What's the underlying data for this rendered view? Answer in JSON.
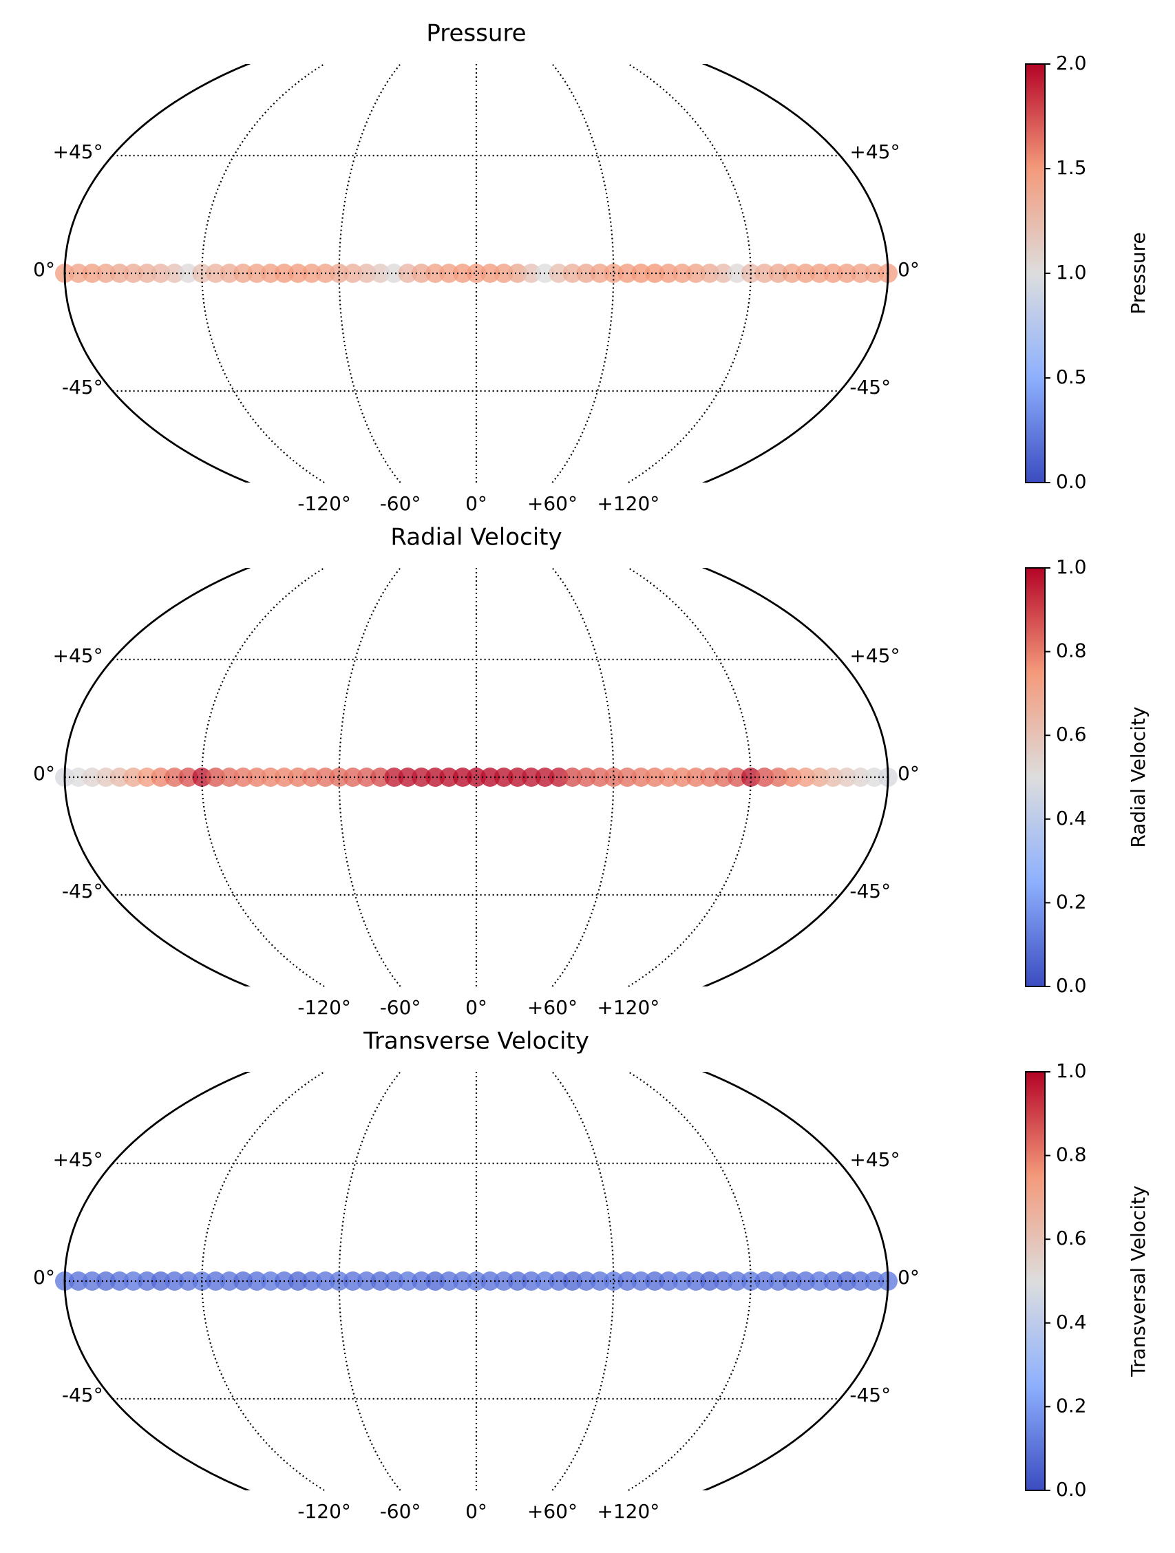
{
  "chart_data": [
    {
      "type": "scatter",
      "title": "Pressure",
      "colormap": "coolwarm",
      "colorbar_label": "Pressure",
      "clim": [
        0,
        2
      ],
      "cticks": [
        {
          "value": 0,
          "label": "0.0"
        },
        {
          "value": 0.5,
          "label": "0.5"
        },
        {
          "value": 1,
          "label": "1.0"
        },
        {
          "value": 1.5,
          "label": "1.5"
        },
        {
          "value": 2,
          "label": "2.0"
        }
      ],
      "xlim": [
        -180,
        180
      ],
      "ylim": [
        -80,
        80
      ],
      "xticks": [
        {
          "value": -120,
          "label": "-120°"
        },
        {
          "value": -60,
          "label": "-60°"
        },
        {
          "value": 0,
          "label": "0°"
        },
        {
          "value": 60,
          "label": "+60°"
        },
        {
          "value": 120,
          "label": "+120°"
        }
      ],
      "yticks": [
        {
          "value": -45,
          "label": "-45°"
        },
        {
          "value": 0,
          "label": "0°"
        },
        {
          "value": 45,
          "label": "+45°"
        }
      ],
      "grid": true,
      "x": [
        -180,
        -174,
        -168,
        -162,
        -156,
        -150,
        -144,
        -138,
        -132,
        -126,
        -120,
        -114,
        -108,
        -102,
        -96,
        -90,
        -84,
        -78,
        -72,
        -66,
        -60,
        -54,
        -48,
        -42,
        -36,
        -30,
        -24,
        -18,
        -12,
        -6,
        0,
        6,
        12,
        18,
        24,
        30,
        36,
        42,
        48,
        54,
        60,
        66,
        72,
        78,
        84,
        90,
        96,
        102,
        108,
        114,
        120,
        126,
        132,
        138,
        144,
        150,
        156,
        162,
        168,
        174,
        180
      ],
      "y": [
        0,
        0,
        0,
        0,
        0,
        0,
        0,
        0,
        0,
        0,
        0,
        0,
        0,
        0,
        0,
        0,
        0,
        0,
        0,
        0,
        0,
        0,
        0,
        0,
        0,
        0,
        0,
        0,
        0,
        0,
        0,
        0,
        0,
        0,
        0,
        0,
        0,
        0,
        0,
        0,
        0,
        0,
        0,
        0,
        0,
        0,
        0,
        0,
        0,
        0,
        0,
        0,
        0,
        0,
        0,
        0,
        0,
        0,
        0,
        0,
        0
      ],
      "values": [
        1.45,
        1.42,
        1.44,
        1.4,
        1.38,
        1.35,
        1.32,
        1.28,
        1.2,
        1.02,
        1.22,
        1.3,
        1.35,
        1.4,
        1.42,
        1.45,
        1.47,
        1.48,
        1.45,
        1.42,
        1.38,
        1.32,
        1.25,
        1.15,
        1.02,
        1.28,
        1.38,
        1.42,
        1.45,
        1.47,
        1.48,
        1.47,
        1.45,
        1.38,
        1.2,
        1.0,
        1.22,
        1.32,
        1.38,
        1.42,
        1.45,
        1.48,
        1.5,
        1.5,
        1.48,
        1.45,
        1.42,
        1.35,
        1.25,
        1.02,
        1.25,
        1.33,
        1.38,
        1.42,
        1.44,
        1.45,
        1.46,
        1.45,
        1.43,
        1.42,
        1.45
      ]
    },
    {
      "type": "scatter",
      "title": "Radial Velocity",
      "colormap": "coolwarm",
      "colorbar_label": "Radial Velocity",
      "clim": [
        0,
        1
      ],
      "cticks": [
        {
          "value": 0,
          "label": "0.0"
        },
        0.2,
        0.4,
        0.6,
        0.8,
        {
          "value": 1,
          "label": "1.0"
        }
      ],
      "xlim": [
        -180,
        180
      ],
      "ylim": [
        -80,
        80
      ],
      "xticks": [
        {
          "value": -120,
          "label": "-120°"
        },
        {
          "value": -60,
          "label": "-60°"
        },
        {
          "value": 0,
          "label": "0°"
        },
        {
          "value": 60,
          "label": "+60°"
        },
        {
          "value": 120,
          "label": "+120°"
        }
      ],
      "yticks": [
        {
          "value": -45,
          "label": "-45°"
        },
        {
          "value": 0,
          "label": "0°"
        },
        {
          "value": 45,
          "label": "+45°"
        }
      ],
      "grid": true,
      "x": [
        -180,
        -174,
        -168,
        -162,
        -156,
        -150,
        -144,
        -138,
        -132,
        -126,
        -120,
        -114,
        -108,
        -102,
        -96,
        -90,
        -84,
        -78,
        -72,
        -66,
        -60,
        -54,
        -48,
        -42,
        -36,
        -30,
        -24,
        -18,
        -12,
        -6,
        0,
        6,
        12,
        18,
        24,
        30,
        36,
        42,
        48,
        54,
        60,
        66,
        72,
        78,
        84,
        90,
        96,
        102,
        108,
        114,
        120,
        126,
        132,
        138,
        144,
        150,
        156,
        162,
        168,
        174,
        180
      ],
      "y": [
        0,
        0,
        0,
        0,
        0,
        0,
        0,
        0,
        0,
        0,
        0,
        0,
        0,
        0,
        0,
        0,
        0,
        0,
        0,
        0,
        0,
        0,
        0,
        0,
        0,
        0,
        0,
        0,
        0,
        0,
        0,
        0,
        0,
        0,
        0,
        0,
        0,
        0,
        0,
        0,
        0,
        0,
        0,
        0,
        0,
        0,
        0,
        0,
        0,
        0,
        0,
        0,
        0,
        0,
        0,
        0,
        0,
        0,
        0,
        0,
        0
      ],
      "values": [
        0.48,
        0.5,
        0.53,
        0.57,
        0.62,
        0.68,
        0.73,
        0.78,
        0.82,
        0.86,
        0.96,
        0.85,
        0.82,
        0.8,
        0.79,
        0.78,
        0.78,
        0.79,
        0.8,
        0.81,
        0.82,
        0.83,
        0.84,
        0.87,
        0.95,
        0.96,
        0.96,
        0.97,
        0.97,
        0.98,
        0.98,
        0.98,
        0.97,
        0.97,
        0.96,
        0.96,
        0.95,
        0.87,
        0.84,
        0.83,
        0.82,
        0.81,
        0.8,
        0.79,
        0.78,
        0.78,
        0.79,
        0.8,
        0.82,
        0.85,
        0.96,
        0.86,
        0.82,
        0.78,
        0.73,
        0.68,
        0.62,
        0.57,
        0.53,
        0.5,
        0.48
      ]
    },
    {
      "type": "scatter",
      "title": "Transverse Velocity",
      "colormap": "coolwarm",
      "colorbar_label": "Transversal Velocity",
      "clim": [
        0,
        1
      ],
      "cticks": [
        {
          "value": 0,
          "label": "0.0"
        },
        0.2,
        0.4,
        0.6,
        0.8,
        {
          "value": 1,
          "label": "1.0"
        }
      ],
      "xlim": [
        -180,
        180
      ],
      "ylim": [
        -80,
        80
      ],
      "xticks": [
        {
          "value": -120,
          "label": "-120°"
        },
        {
          "value": -60,
          "label": "-60°"
        },
        {
          "value": 0,
          "label": "0°"
        },
        {
          "value": 60,
          "label": "+60°"
        },
        {
          "value": 120,
          "label": "+120°"
        }
      ],
      "yticks": [
        {
          "value": -45,
          "label": "-45°"
        },
        {
          "value": 0,
          "label": "0°"
        },
        {
          "value": 45,
          "label": "+45°"
        }
      ],
      "grid": true,
      "x": [
        -180,
        -174,
        -168,
        -162,
        -156,
        -150,
        -144,
        -138,
        -132,
        -126,
        -120,
        -114,
        -108,
        -102,
        -96,
        -90,
        -84,
        -78,
        -72,
        -66,
        -60,
        -54,
        -48,
        -42,
        -36,
        -30,
        -24,
        -18,
        -12,
        -6,
        0,
        6,
        12,
        18,
        24,
        30,
        36,
        42,
        48,
        54,
        60,
        66,
        72,
        78,
        84,
        90,
        96,
        102,
        108,
        114,
        120,
        126,
        132,
        138,
        144,
        150,
        156,
        162,
        168,
        174,
        180
      ],
      "y": [
        0,
        0,
        0,
        0,
        0,
        0,
        0,
        0,
        0,
        0,
        0,
        0,
        0,
        0,
        0,
        0,
        0,
        0,
        0,
        0,
        0,
        0,
        0,
        0,
        0,
        0,
        0,
        0,
        0,
        0,
        0,
        0,
        0,
        0,
        0,
        0,
        0,
        0,
        0,
        0,
        0,
        0,
        0,
        0,
        0,
        0,
        0,
        0,
        0,
        0,
        0,
        0,
        0,
        0,
        0,
        0,
        0,
        0,
        0,
        0,
        0
      ],
      "values": [
        0.12,
        0.1,
        0.11,
        0.09,
        0.1,
        0.12,
        0.1,
        0.08,
        0.1,
        0.11,
        0.12,
        0.1,
        0.11,
        0.09,
        0.1,
        0.12,
        0.1,
        0.08,
        0.1,
        0.11,
        0.12,
        0.1,
        0.11,
        0.09,
        0.1,
        0.12,
        0.1,
        0.08,
        0.1,
        0.11,
        0.12,
        0.1,
        0.11,
        0.09,
        0.1,
        0.12,
        0.1,
        0.08,
        0.1,
        0.11,
        0.12,
        0.1,
        0.11,
        0.09,
        0.1,
        0.12,
        0.1,
        0.08,
        0.1,
        0.11,
        0.12,
        0.1,
        0.11,
        0.09,
        0.1,
        0.12,
        0.1,
        0.08,
        0.1,
        0.11,
        0.12
      ]
    }
  ]
}
